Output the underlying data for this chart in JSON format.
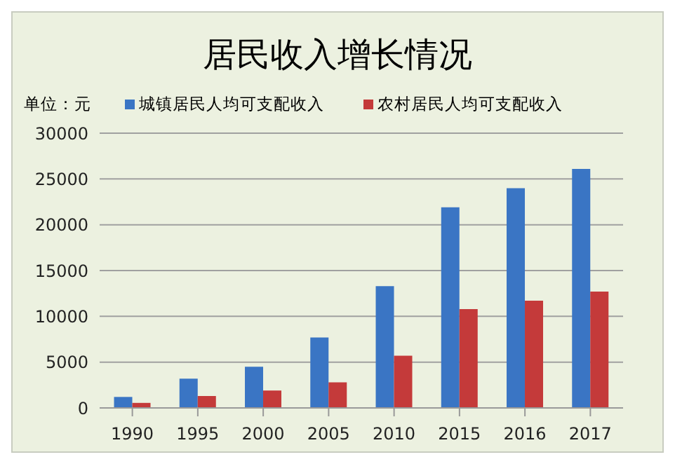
{
  "chart_data": {
    "type": "bar",
    "title": "居民收入增长情况",
    "annotations": [
      "单位：元"
    ],
    "categories": [
      "1990",
      "1995",
      "2000",
      "2005",
      "2010",
      "2015",
      "2016",
      "2017"
    ],
    "series": [
      {
        "name": "城镇居民人均可支配收入",
        "color": "#3a75c4",
        "values": [
          1200,
          3200,
          4500,
          7700,
          13300,
          21900,
          24000,
          26100
        ]
      },
      {
        "name": "农村居民人均可支配收入",
        "color": "#c43a3a",
        "values": [
          550,
          1300,
          1900,
          2800,
          5700,
          10800,
          11700,
          12700
        ]
      }
    ],
    "ylim": [
      0,
      30000
    ],
    "yticks": [
      0,
      5000,
      10000,
      15000,
      20000,
      25000,
      30000
    ],
    "grid": "y",
    "legend": "top"
  }
}
